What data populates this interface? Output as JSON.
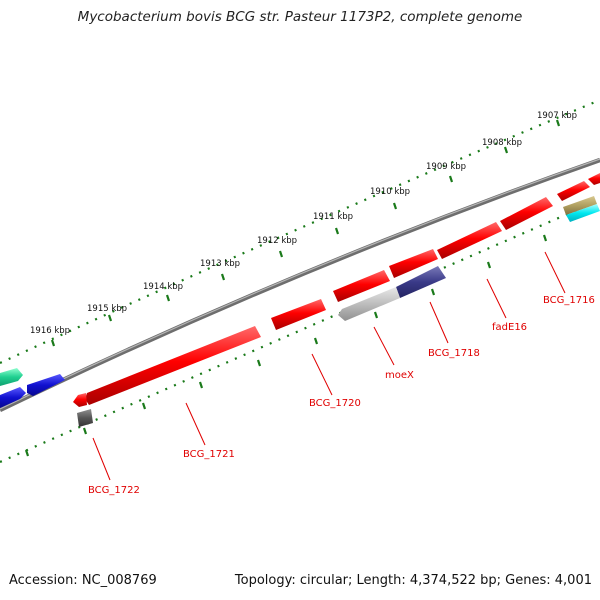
{
  "title": "Mycobacterium bovis BCG str. Pasteur 1173P2, complete genome",
  "accession": "Accession: NC_008769",
  "summary": "Topology: circular; Length: 4,374,522 bp; Genes: 4,001",
  "scale": {
    "labels": [
      "1907 kbp",
      "1908 kbp",
      "1909 kbp",
      "1910 kbp",
      "1911 kbp",
      "1912 kbp",
      "1913 kbp",
      "1914 kbp",
      "1915 kbp",
      "1916 kbp"
    ]
  },
  "genes": {
    "labels": [
      "BCG_1716",
      "fadE16",
      "BCG_1718",
      "moeX",
      "BCG_1720",
      "BCG_1721",
      "BCG_1722"
    ]
  },
  "colors": {
    "backbone": "#808080",
    "ticks": "#1a7a1a",
    "red_gene": "#ee0000",
    "gene_label": "#e00000",
    "navy_gene": "#3a3a88",
    "blue_gene": "#1010d0",
    "teal_gene": "#20d090",
    "cyan_gene": "#00e8f0",
    "tan_gene": "#b0a060",
    "gray_gene": "#b8b8b8"
  }
}
